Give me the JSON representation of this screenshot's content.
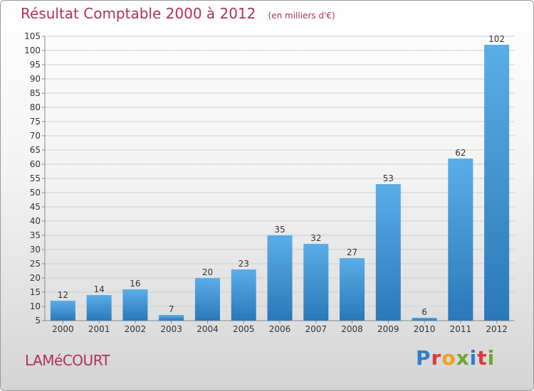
{
  "header": {
    "title": "Résultat Comptable 2000 à 2012",
    "unit": "(en milliers d'€)"
  },
  "footer": {
    "commune": "LAMéCOURT",
    "logo_letters": [
      {
        "char": "P",
        "color": "#2f7fc8"
      },
      {
        "char": "r",
        "color": "#e0383c"
      },
      {
        "char": "o",
        "color": "#f0a020"
      },
      {
        "char": "x",
        "color": "#6aa82c"
      },
      {
        "char": "i",
        "color": "#2f7fc8"
      },
      {
        "char": "t",
        "color": "#e0383c"
      },
      {
        "char": "i",
        "color": "#6aa82c"
      }
    ]
  },
  "colors": {
    "title": "#b03060",
    "bar_top": "#5aaee8",
    "bar_bottom": "#2a78b8",
    "grid": "#cfcfcf",
    "axis": "#888888"
  },
  "chart_data": {
    "type": "bar",
    "title": "Résultat Comptable 2000 à 2012",
    "subtitle": "(en milliers d'€)",
    "categories": [
      "2000",
      "2001",
      "2002",
      "2003",
      "2004",
      "2005",
      "2006",
      "2007",
      "2008",
      "2009",
      "2010",
      "2011",
      "2012"
    ],
    "values": [
      12,
      14,
      16,
      7,
      20,
      23,
      35,
      32,
      27,
      53,
      6,
      62,
      102
    ],
    "ylim": [
      5,
      105
    ],
    "yticks": [
      5,
      10,
      15,
      20,
      25,
      30,
      35,
      40,
      45,
      50,
      55,
      60,
      65,
      70,
      75,
      80,
      85,
      90,
      95,
      100,
      105
    ],
    "grid": true,
    "xlabel": "",
    "ylabel": ""
  }
}
